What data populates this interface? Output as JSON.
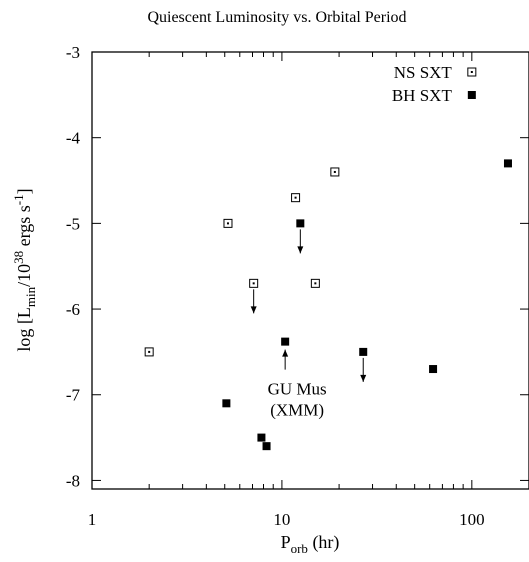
{
  "chart_data": {
    "type": "scatter",
    "title": "Quiescent Luminosity vs. Orbital Period",
    "xlabel": {
      "main": "P",
      "sub": "orb",
      "rest": " (hr)"
    },
    "ylabel": {
      "pre": "log [L",
      "sub": "min",
      "mid": "/10",
      "sup1": "38",
      "post": " ergs s",
      "sup2": "-1",
      "end": "]"
    },
    "x_scale": "log",
    "xlim": [
      1,
      200
    ],
    "ylim": [
      -8.1,
      -3
    ],
    "x_ticks": [
      {
        "value": 1,
        "label": "1"
      },
      {
        "value": 10,
        "label": "10"
      },
      {
        "value": 100,
        "label": "100"
      }
    ],
    "y_ticks": [
      {
        "value": -3,
        "label": "-3"
      },
      {
        "value": -4,
        "label": "-4"
      },
      {
        "value": -5,
        "label": "-5"
      },
      {
        "value": -6,
        "label": "-6"
      },
      {
        "value": -7,
        "label": "-7"
      },
      {
        "value": -8,
        "label": "-8"
      }
    ],
    "legend_position": "top-right",
    "grid": false,
    "series": [
      {
        "name": "NS SXT",
        "marker": "open-square",
        "color": "#000000",
        "points": [
          {
            "x": 2.0,
            "y": -6.5
          },
          {
            "x": 5.2,
            "y": -5.0
          },
          {
            "x": 7.1,
            "y": -5.7,
            "limit": "upper"
          },
          {
            "x": 11.8,
            "y": -4.7
          },
          {
            "x": 15.0,
            "y": -5.7
          },
          {
            "x": 19.0,
            "y": -4.4
          }
        ]
      },
      {
        "name": "BH SXT",
        "marker": "filled-square",
        "color": "#000000",
        "points": [
          {
            "x": 5.1,
            "y": -7.1
          },
          {
            "x": 7.8,
            "y": -7.5
          },
          {
            "x": 8.3,
            "y": -7.6
          },
          {
            "x": 10.4,
            "y": -6.38,
            "limit": "lower"
          },
          {
            "x": 12.5,
            "y": -5.0,
            "limit": "upper"
          },
          {
            "x": 26.8,
            "y": -6.5,
            "limit": "upper"
          },
          {
            "x": 62.5,
            "y": -6.7
          },
          {
            "x": 155.0,
            "y": -4.3
          }
        ]
      }
    ],
    "annotations": [
      {
        "text": "GU Mus"
      },
      {
        "text": "(XMM)"
      }
    ]
  }
}
